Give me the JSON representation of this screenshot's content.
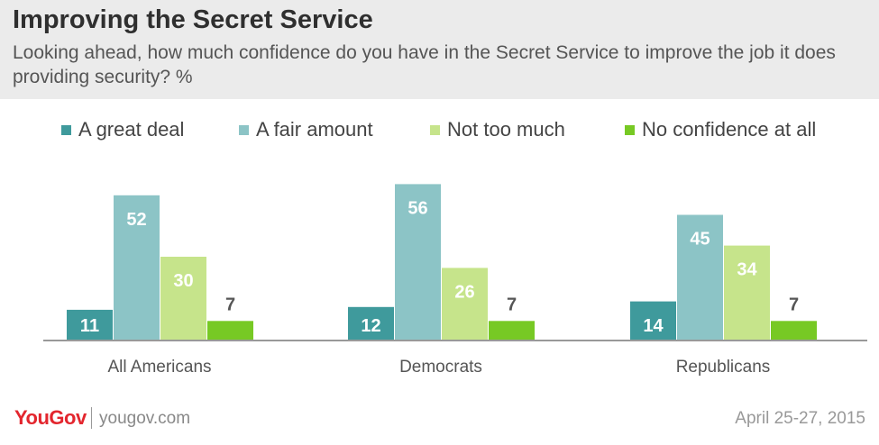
{
  "header": {
    "title": "Improving the Secret Service",
    "subtitle": "Looking ahead, how much confidence do you have in the Secret Service to improve the job it does providing security? %"
  },
  "legend": [
    {
      "label": "A great deal",
      "color": "#3f9a9c"
    },
    {
      "label": "A fair amount",
      "color": "#8cc4c6"
    },
    {
      "label": "Not too much",
      "color": "#c6e48b"
    },
    {
      "label": "No confidence at all",
      "color": "#77c924"
    }
  ],
  "chart_data": {
    "type": "bar",
    "title": "Improving the Secret Service",
    "xlabel": "",
    "ylabel": "%",
    "ylim": [
      0,
      60
    ],
    "categories": [
      "All Americans",
      "Democrats",
      "Republicans"
    ],
    "series": [
      {
        "name": "A great deal",
        "values": [
          11,
          12,
          14
        ]
      },
      {
        "name": "A fair amount",
        "values": [
          52,
          56,
          45
        ]
      },
      {
        "name": "Not too much",
        "values": [
          30,
          26,
          34
        ]
      },
      {
        "name": "No confidence at all",
        "values": [
          7,
          7,
          7
        ]
      }
    ]
  },
  "footer": {
    "logo": "YouGov",
    "site": "yougov.com",
    "date": "April 25-27, 2015"
  }
}
